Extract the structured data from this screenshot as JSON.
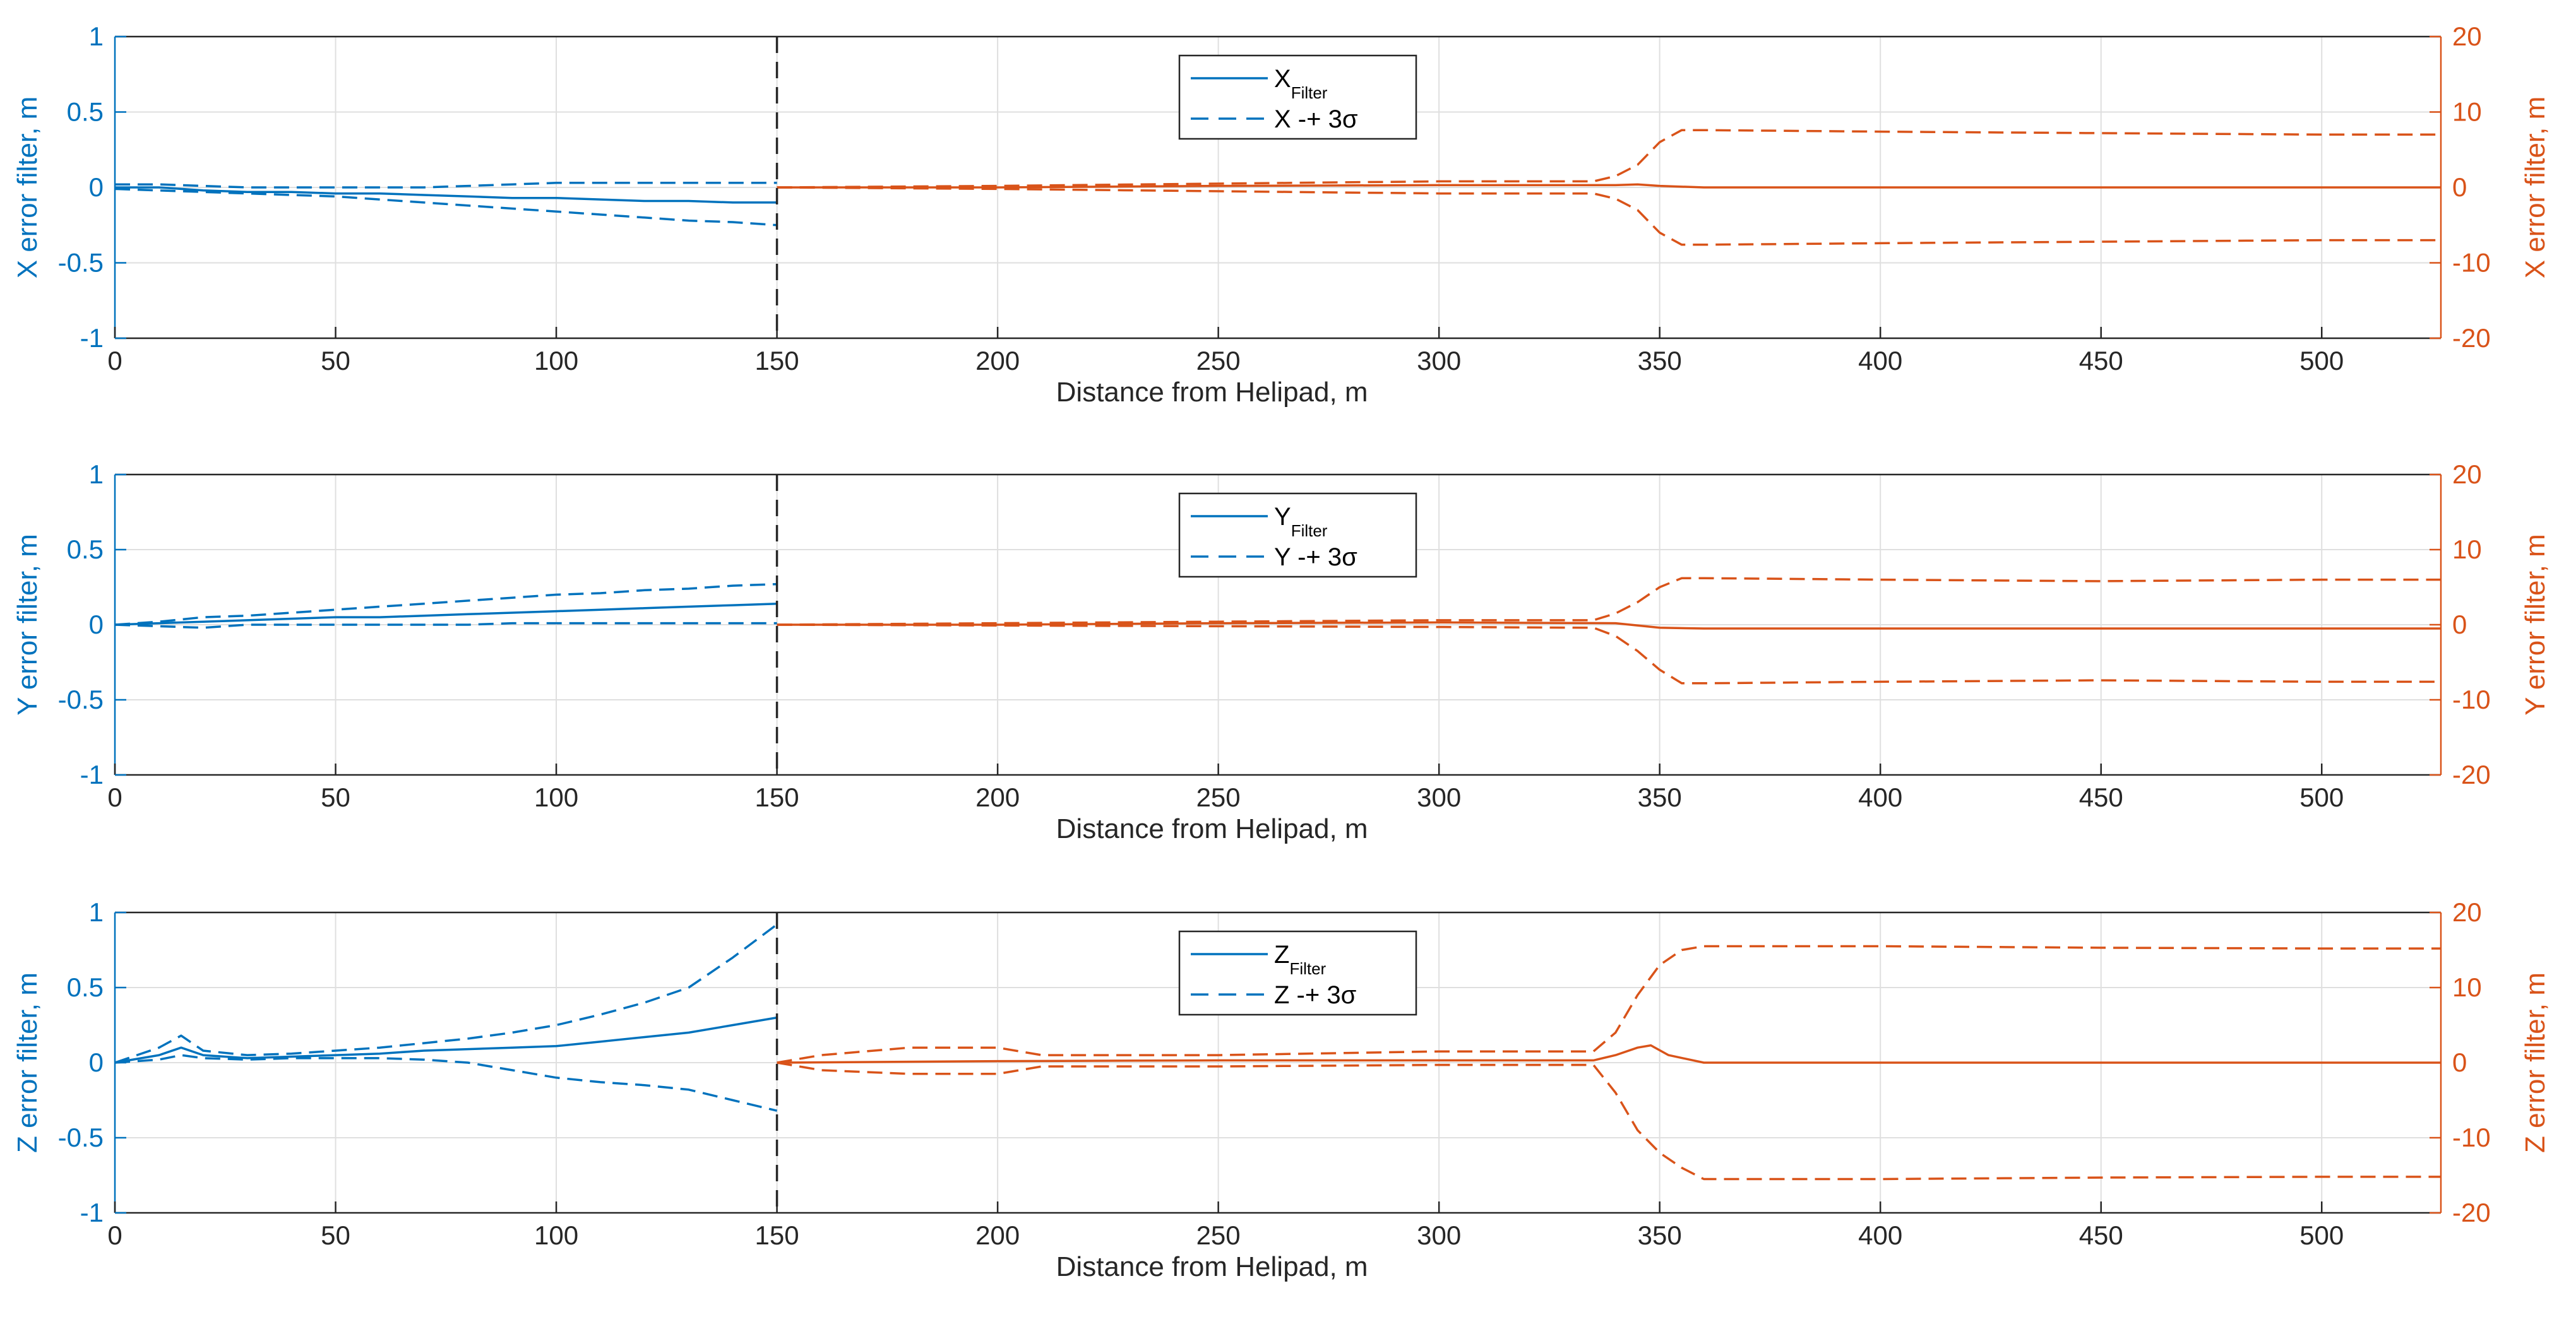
{
  "chart_data": [
    {
      "type": "line",
      "panel": "X",
      "xlabel": "Distance from Helipad, m",
      "ylabel_left": "X error filter, m",
      "ylabel_right": "X error filter, m",
      "xlim": [
        0,
        527
      ],
      "ylim_left": [
        -1,
        1
      ],
      "ylim_right": [
        -20,
        20
      ],
      "xticks": [
        0,
        50,
        100,
        150,
        200,
        250,
        300,
        350,
        400,
        450,
        500
      ],
      "yticks_left": [
        -1,
        -0.5,
        0,
        0.5,
        1
      ],
      "yticks_right": [
        -20,
        -10,
        0,
        10,
        20
      ],
      "grid": true,
      "divider_x": 150,
      "legend": {
        "position": "top-center",
        "entries": [
          {
            "main": "X",
            "sub": "Filter",
            "style": "solid"
          },
          {
            "main": "X -+ 3σ",
            "sub": "",
            "style": "dashed"
          }
        ]
      },
      "series": [
        {
          "name": "X filter (near)",
          "axis": "left",
          "style": "solid",
          "x": [
            0,
            10,
            20,
            30,
            40,
            50,
            60,
            70,
            80,
            90,
            100,
            110,
            120,
            130,
            140,
            150
          ],
          "y": [
            0.0,
            0.0,
            -0.02,
            -0.03,
            -0.03,
            -0.04,
            -0.04,
            -0.05,
            -0.06,
            -0.07,
            -0.07,
            -0.08,
            -0.09,
            -0.09,
            -0.1,
            -0.1
          ]
        },
        {
          "name": "X +3σ (near)",
          "axis": "left",
          "style": "dashed",
          "x": [
            0,
            10,
            20,
            30,
            40,
            50,
            60,
            70,
            80,
            90,
            100,
            110,
            120,
            130,
            140,
            150
          ],
          "y": [
            0.02,
            0.02,
            0.01,
            0.0,
            0.0,
            0.0,
            0.0,
            0.0,
            0.01,
            0.02,
            0.03,
            0.03,
            0.03,
            0.03,
            0.03,
            0.03
          ]
        },
        {
          "name": "X -3σ (near)",
          "axis": "left",
          "style": "dashed",
          "x": [
            0,
            10,
            20,
            30,
            40,
            50,
            60,
            70,
            80,
            90,
            100,
            110,
            120,
            130,
            140,
            150
          ],
          "y": [
            -0.01,
            -0.02,
            -0.03,
            -0.04,
            -0.05,
            -0.06,
            -0.08,
            -0.1,
            -0.12,
            -0.14,
            -0.16,
            -0.18,
            -0.2,
            -0.22,
            -0.23,
            -0.25
          ]
        },
        {
          "name": "X filter (far)",
          "axis": "right",
          "style": "solid",
          "x": [
            150,
            200,
            250,
            300,
            340,
            345,
            350,
            360,
            400,
            450,
            500,
            527
          ],
          "y": [
            0.0,
            0.0,
            0.2,
            0.3,
            0.3,
            0.4,
            0.2,
            0.0,
            0.0,
            0.0,
            0.0,
            0.0
          ]
        },
        {
          "name": "X +3σ (far)",
          "axis": "right",
          "style": "dashed",
          "x": [
            150,
            200,
            250,
            300,
            335,
            340,
            345,
            350,
            355,
            360,
            400,
            450,
            500,
            527
          ],
          "y": [
            0.0,
            0.2,
            0.5,
            0.8,
            0.8,
            1.5,
            3.0,
            6.0,
            7.6,
            7.6,
            7.4,
            7.2,
            7.0,
            7.0
          ]
        },
        {
          "name": "X -3σ (far)",
          "axis": "right",
          "style": "dashed",
          "x": [
            150,
            200,
            250,
            300,
            335,
            340,
            345,
            350,
            355,
            360,
            400,
            450,
            500,
            527
          ],
          "y": [
            0.0,
            -0.2,
            -0.5,
            -0.8,
            -0.8,
            -1.5,
            -3.0,
            -6.0,
            -7.6,
            -7.6,
            -7.4,
            -7.2,
            -7.0,
            -7.0
          ]
        }
      ]
    },
    {
      "type": "line",
      "panel": "Y",
      "xlabel": "Distance from Helipad, m",
      "ylabel_left": "Y error filter, m",
      "ylabel_right": "Y error filter, m",
      "xlim": [
        0,
        527
      ],
      "ylim_left": [
        -1,
        1
      ],
      "ylim_right": [
        -20,
        20
      ],
      "xticks": [
        0,
        50,
        100,
        150,
        200,
        250,
        300,
        350,
        400,
        450,
        500
      ],
      "yticks_left": [
        -1,
        -0.5,
        0,
        0.5,
        1
      ],
      "yticks_right": [
        -20,
        -10,
        0,
        10,
        20
      ],
      "grid": true,
      "divider_x": 150,
      "legend": {
        "position": "top-center",
        "entries": [
          {
            "main": "Y",
            "sub": "Filter",
            "style": "solid"
          },
          {
            "main": "Y -+ 3σ",
            "sub": "",
            "style": "dashed"
          }
        ]
      },
      "series": [
        {
          "name": "Y filter (near)",
          "axis": "left",
          "style": "solid",
          "x": [
            0,
            10,
            20,
            30,
            40,
            50,
            60,
            70,
            80,
            90,
            100,
            110,
            120,
            130,
            140,
            150
          ],
          "y": [
            0.0,
            0.01,
            0.02,
            0.03,
            0.04,
            0.05,
            0.05,
            0.06,
            0.07,
            0.08,
            0.09,
            0.1,
            0.11,
            0.12,
            0.13,
            0.14
          ]
        },
        {
          "name": "Y +3σ (near)",
          "axis": "left",
          "style": "dashed",
          "x": [
            0,
            10,
            20,
            30,
            40,
            50,
            60,
            70,
            80,
            90,
            100,
            110,
            120,
            130,
            140,
            150
          ],
          "y": [
            0.0,
            0.02,
            0.05,
            0.06,
            0.08,
            0.1,
            0.12,
            0.14,
            0.16,
            0.18,
            0.2,
            0.21,
            0.23,
            0.24,
            0.26,
            0.27
          ]
        },
        {
          "name": "Y -3σ (near)",
          "axis": "left",
          "style": "dashed",
          "x": [
            0,
            10,
            20,
            30,
            40,
            50,
            60,
            70,
            80,
            90,
            100,
            110,
            120,
            130,
            140,
            150
          ],
          "y": [
            0.0,
            -0.01,
            -0.02,
            0.0,
            0.0,
            0.0,
            0.0,
            0.0,
            0.0,
            0.01,
            0.01,
            0.01,
            0.01,
            0.01,
            0.01,
            0.01
          ]
        },
        {
          "name": "Y filter (far)",
          "axis": "right",
          "style": "solid",
          "x": [
            150,
            200,
            250,
            300,
            340,
            350,
            360,
            400,
            450,
            500,
            527
          ],
          "y": [
            0.0,
            0.0,
            0.2,
            0.3,
            0.2,
            -0.4,
            -0.5,
            -0.5,
            -0.5,
            -0.5,
            -0.5
          ]
        },
        {
          "name": "Y +3σ (far)",
          "axis": "right",
          "style": "dashed",
          "x": [
            150,
            200,
            250,
            300,
            335,
            340,
            345,
            350,
            355,
            360,
            400,
            450,
            500,
            527
          ],
          "y": [
            0.0,
            0.2,
            0.4,
            0.6,
            0.6,
            1.5,
            3.0,
            5.0,
            6.2,
            6.2,
            6.0,
            5.8,
            6.0,
            6.0
          ]
        },
        {
          "name": "Y -3σ (far)",
          "axis": "right",
          "style": "dashed",
          "x": [
            150,
            200,
            250,
            300,
            335,
            340,
            345,
            350,
            355,
            360,
            400,
            450,
            500,
            527
          ],
          "y": [
            0.0,
            -0.1,
            -0.2,
            -0.3,
            -0.4,
            -1.5,
            -3.5,
            -6.0,
            -7.8,
            -7.8,
            -7.6,
            -7.4,
            -7.6,
            -7.6
          ]
        }
      ]
    },
    {
      "type": "line",
      "panel": "Z",
      "xlabel": "Distance from Helipad, m",
      "ylabel_left": "Z error filter, m",
      "ylabel_right": "Z error filter, m",
      "xlim": [
        0,
        527
      ],
      "ylim_left": [
        -1,
        1
      ],
      "ylim_right": [
        -20,
        20
      ],
      "xticks": [
        0,
        50,
        100,
        150,
        200,
        250,
        300,
        350,
        400,
        450,
        500
      ],
      "yticks_left": [
        -1,
        -0.5,
        0,
        0.5,
        1
      ],
      "yticks_right": [
        -20,
        -10,
        0,
        10,
        20
      ],
      "grid": true,
      "divider_x": 150,
      "legend": {
        "position": "top-center",
        "entries": [
          {
            "main": "Z",
            "sub": "Filter",
            "style": "solid"
          },
          {
            "main": "Z -+ 3σ",
            "sub": "",
            "style": "dashed"
          }
        ]
      },
      "series": [
        {
          "name": "Z filter (near)",
          "axis": "left",
          "style": "solid",
          "x": [
            0,
            10,
            15,
            20,
            30,
            40,
            50,
            60,
            70,
            80,
            90,
            100,
            110,
            120,
            130,
            140,
            150
          ],
          "y": [
            0.0,
            0.05,
            0.1,
            0.05,
            0.03,
            0.04,
            0.05,
            0.06,
            0.08,
            0.09,
            0.1,
            0.11,
            0.14,
            0.17,
            0.2,
            0.25,
            0.3
          ]
        },
        {
          "name": "Z +3σ (near)",
          "axis": "left",
          "style": "dashed",
          "x": [
            0,
            10,
            15,
            20,
            30,
            40,
            50,
            60,
            70,
            80,
            90,
            100,
            110,
            120,
            130,
            140,
            150
          ],
          "y": [
            0.0,
            0.1,
            0.18,
            0.08,
            0.05,
            0.06,
            0.08,
            0.1,
            0.13,
            0.16,
            0.2,
            0.25,
            0.32,
            0.4,
            0.5,
            0.7,
            0.92
          ]
        },
        {
          "name": "Z -3σ (near)",
          "axis": "left",
          "style": "dashed",
          "x": [
            0,
            10,
            15,
            20,
            30,
            40,
            50,
            60,
            70,
            80,
            90,
            100,
            110,
            120,
            130,
            140,
            150
          ],
          "y": [
            0.0,
            0.02,
            0.05,
            0.03,
            0.02,
            0.03,
            0.03,
            0.03,
            0.02,
            0.0,
            -0.05,
            -0.1,
            -0.13,
            -0.15,
            -0.18,
            -0.25,
            -0.32
          ]
        },
        {
          "name": "Z filter (far)",
          "axis": "right",
          "style": "solid",
          "x": [
            150,
            200,
            250,
            300,
            335,
            340,
            345,
            348,
            352,
            360,
            400,
            450,
            500,
            527
          ],
          "y": [
            0.0,
            0.2,
            0.3,
            0.3,
            0.3,
            1.0,
            2.0,
            2.3,
            1.0,
            0.0,
            0.0,
            0.0,
            0.0,
            0.0
          ]
        },
        {
          "name": "Z +3σ (far)",
          "axis": "right",
          "style": "dashed",
          "x": [
            150,
            160,
            180,
            200,
            210,
            250,
            300,
            335,
            340,
            345,
            350,
            355,
            360,
            400,
            450,
            500,
            527
          ],
          "y": [
            0.0,
            1.0,
            2.0,
            2.0,
            1.0,
            1.0,
            1.5,
            1.5,
            4.0,
            9.0,
            13.0,
            15.0,
            15.5,
            15.5,
            15.3,
            15.2,
            15.2
          ]
        },
        {
          "name": "Z -3σ (far)",
          "axis": "right",
          "style": "dashed",
          "x": [
            150,
            160,
            180,
            200,
            210,
            250,
            300,
            335,
            340,
            345,
            350,
            355,
            360,
            400,
            450,
            500,
            527
          ],
          "y": [
            0.0,
            -1.0,
            -1.5,
            -1.5,
            -0.5,
            -0.5,
            -0.3,
            -0.3,
            -4.0,
            -9.0,
            -12.0,
            -14.0,
            -15.5,
            -15.5,
            -15.3,
            -15.2,
            -15.2
          ]
        }
      ]
    }
  ]
}
